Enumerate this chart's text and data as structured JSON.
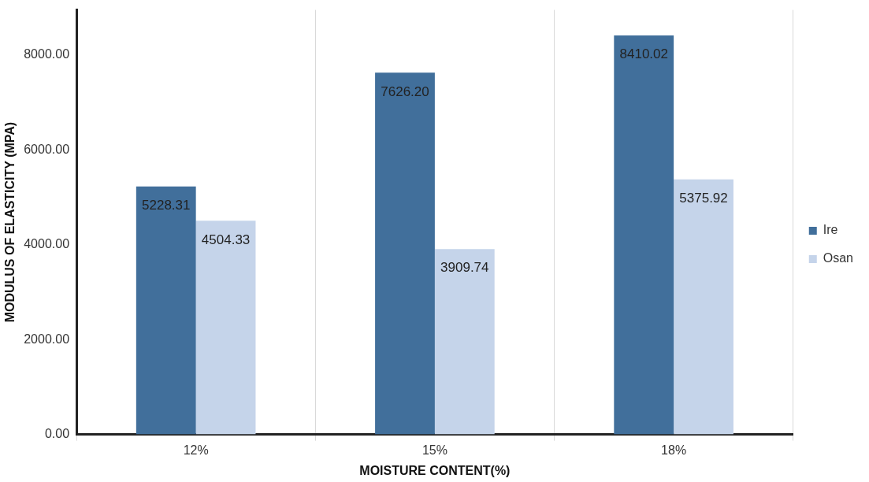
{
  "chart_data": {
    "type": "bar",
    "xlabel": "MOISTURE CONTENT(%)",
    "ylabel": "MODULUS OF ELASTICITY (MPA)",
    "categories": [
      "12%",
      "15%",
      "18%"
    ],
    "series": [
      {
        "name": "Ire",
        "color": "#416f9b",
        "values": [
          5228.31,
          7626.2,
          8410.02
        ],
        "value_labels": [
          "5228.31",
          "7626.20",
          "8410.02"
        ]
      },
      {
        "name": "Osan",
        "color": "#c5d4ea",
        "values": [
          4504.33,
          3909.74,
          5375.92
        ],
        "value_labels": [
          "4504.33",
          "3909.74",
          "5375.92"
        ]
      }
    ],
    "ylim": [
      0,
      8950
    ],
    "yticks": [
      {
        "value": 0,
        "label": "0.00"
      },
      {
        "value": 2000,
        "label": "2000.00"
      },
      {
        "value": 4000,
        "label": "4000.00"
      },
      {
        "value": 6000,
        "label": "6000.00"
      },
      {
        "value": 8000,
        "label": "8000.00"
      }
    ],
    "grid": "x",
    "legend": "right"
  }
}
